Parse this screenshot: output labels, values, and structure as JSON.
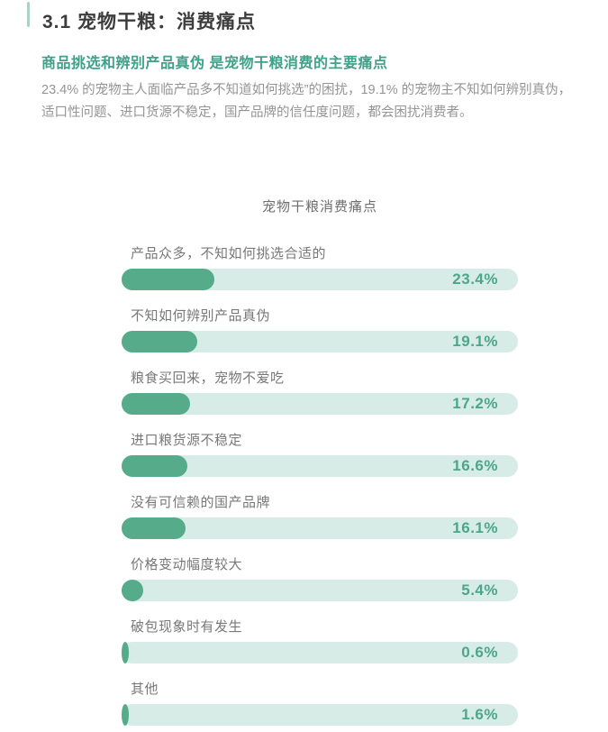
{
  "header": {
    "section_title": "3.1 宠物干粮：消费痛点",
    "subtitle": "商品挑选和辨别产品真伪 是宠物干粮消费的主要痛点",
    "paragraph_line1": "23.4% 的宠物主人面临产品多不知道如何挑选”的困扰，19.1% 的宠物主不知如何辨别真伪，",
    "paragraph_line2": "适口性问题、进口货源不稳定，国产品牌的信任度问题，都会困扰消费者。"
  },
  "chart_data": {
    "type": "bar",
    "orientation": "horizontal",
    "title": "宠物干粮消费痛点",
    "categories": [
      "产品众多，不知如何挑选合适的",
      "不知如何辨别产品真伪",
      "粮食买回来，宠物不爱吃",
      "进口粮货源不稳定",
      "没有可信赖的国产品牌",
      "价格变动幅度较大",
      "破包现象时有发生",
      "其他"
    ],
    "values": [
      23.4,
      19.1,
      17.2,
      16.6,
      16.1,
      5.4,
      0.6,
      1.6
    ],
    "value_labels": [
      "23.4%",
      "19.1%",
      "17.2%",
      "16.6%",
      "16.1%",
      "5.4%",
      "0.6%",
      "1.6%"
    ],
    "xlim": [
      0,
      100
    ],
    "grid": false,
    "legend": "none",
    "bar_fill_color": "#56ab8b",
    "bar_track_color": "#d7ebe7",
    "value_text_color": "#4da68a"
  }
}
